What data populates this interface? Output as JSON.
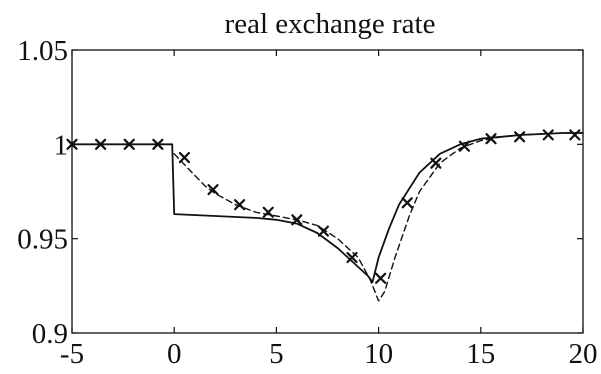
{
  "chart_data": {
    "type": "line",
    "title": "real exchange rate",
    "xlabel": "",
    "ylabel": "",
    "xlim": [
      -5,
      20
    ],
    "ylim": [
      0.9,
      1.05
    ],
    "x_ticks": [
      -5,
      0,
      5,
      10,
      15,
      20
    ],
    "x_tick_labels": [
      "-5",
      "0",
      "5",
      "10",
      "15",
      "20"
    ],
    "y_ticks": [
      0.9,
      0.95,
      1,
      1.05
    ],
    "y_tick_labels": [
      "0.9",
      "0.95",
      "1",
      "1.05"
    ],
    "grid": false,
    "line_color": "#111111",
    "series": [
      {
        "style": "solid",
        "x": [
          -5,
          -0.1,
          0,
          2,
          4,
          5,
          6,
          7,
          8,
          8.5,
          9,
          9.5,
          9.7,
          10,
          10.5,
          11,
          12,
          13,
          14,
          15,
          16,
          17,
          18,
          19,
          20
        ],
        "y": [
          1.0,
          1.0,
          0.963,
          0.962,
          0.961,
          0.96,
          0.958,
          0.953,
          0.945,
          0.94,
          0.935,
          0.93,
          0.927,
          0.94,
          0.955,
          0.968,
          0.985,
          0.995,
          1.0,
          1.003,
          1.004,
          1.005,
          1.0055,
          1.006,
          1.006
        ]
      },
      {
        "style": "dashed",
        "markers": false,
        "x": [
          0,
          0.7,
          1.5,
          2,
          3,
          4,
          5,
          6,
          7,
          8,
          9,
          9.6,
          10,
          10.3,
          10.8,
          11.5,
          12,
          13,
          14,
          15,
          16,
          17,
          18,
          19,
          20
        ],
        "y": [
          0.995,
          0.987,
          0.978,
          0.974,
          0.968,
          0.964,
          0.962,
          0.96,
          0.957,
          0.95,
          0.94,
          0.928,
          0.917,
          0.922,
          0.94,
          0.962,
          0.975,
          0.99,
          0.998,
          1.002,
          1.004,
          1.005,
          1.0055,
          1.006,
          1.006
        ]
      },
      {
        "style": "markers",
        "marker": "x",
        "x": [
          -5,
          -3.6,
          -2.2,
          -0.8,
          0.5,
          1.9,
          3.2,
          4.6,
          6,
          7.3,
          8.7,
          10.1,
          11.4,
          12.8,
          14.2,
          15.5,
          16.9,
          18.3,
          19.6
        ],
        "y": [
          1.0,
          1.0,
          1.0,
          1.0,
          0.993,
          0.976,
          0.968,
          0.964,
          0.96,
          0.954,
          0.94,
          0.929,
          0.969,
          0.99,
          0.999,
          1.003,
          1.004,
          1.005,
          1.005
        ]
      }
    ]
  }
}
